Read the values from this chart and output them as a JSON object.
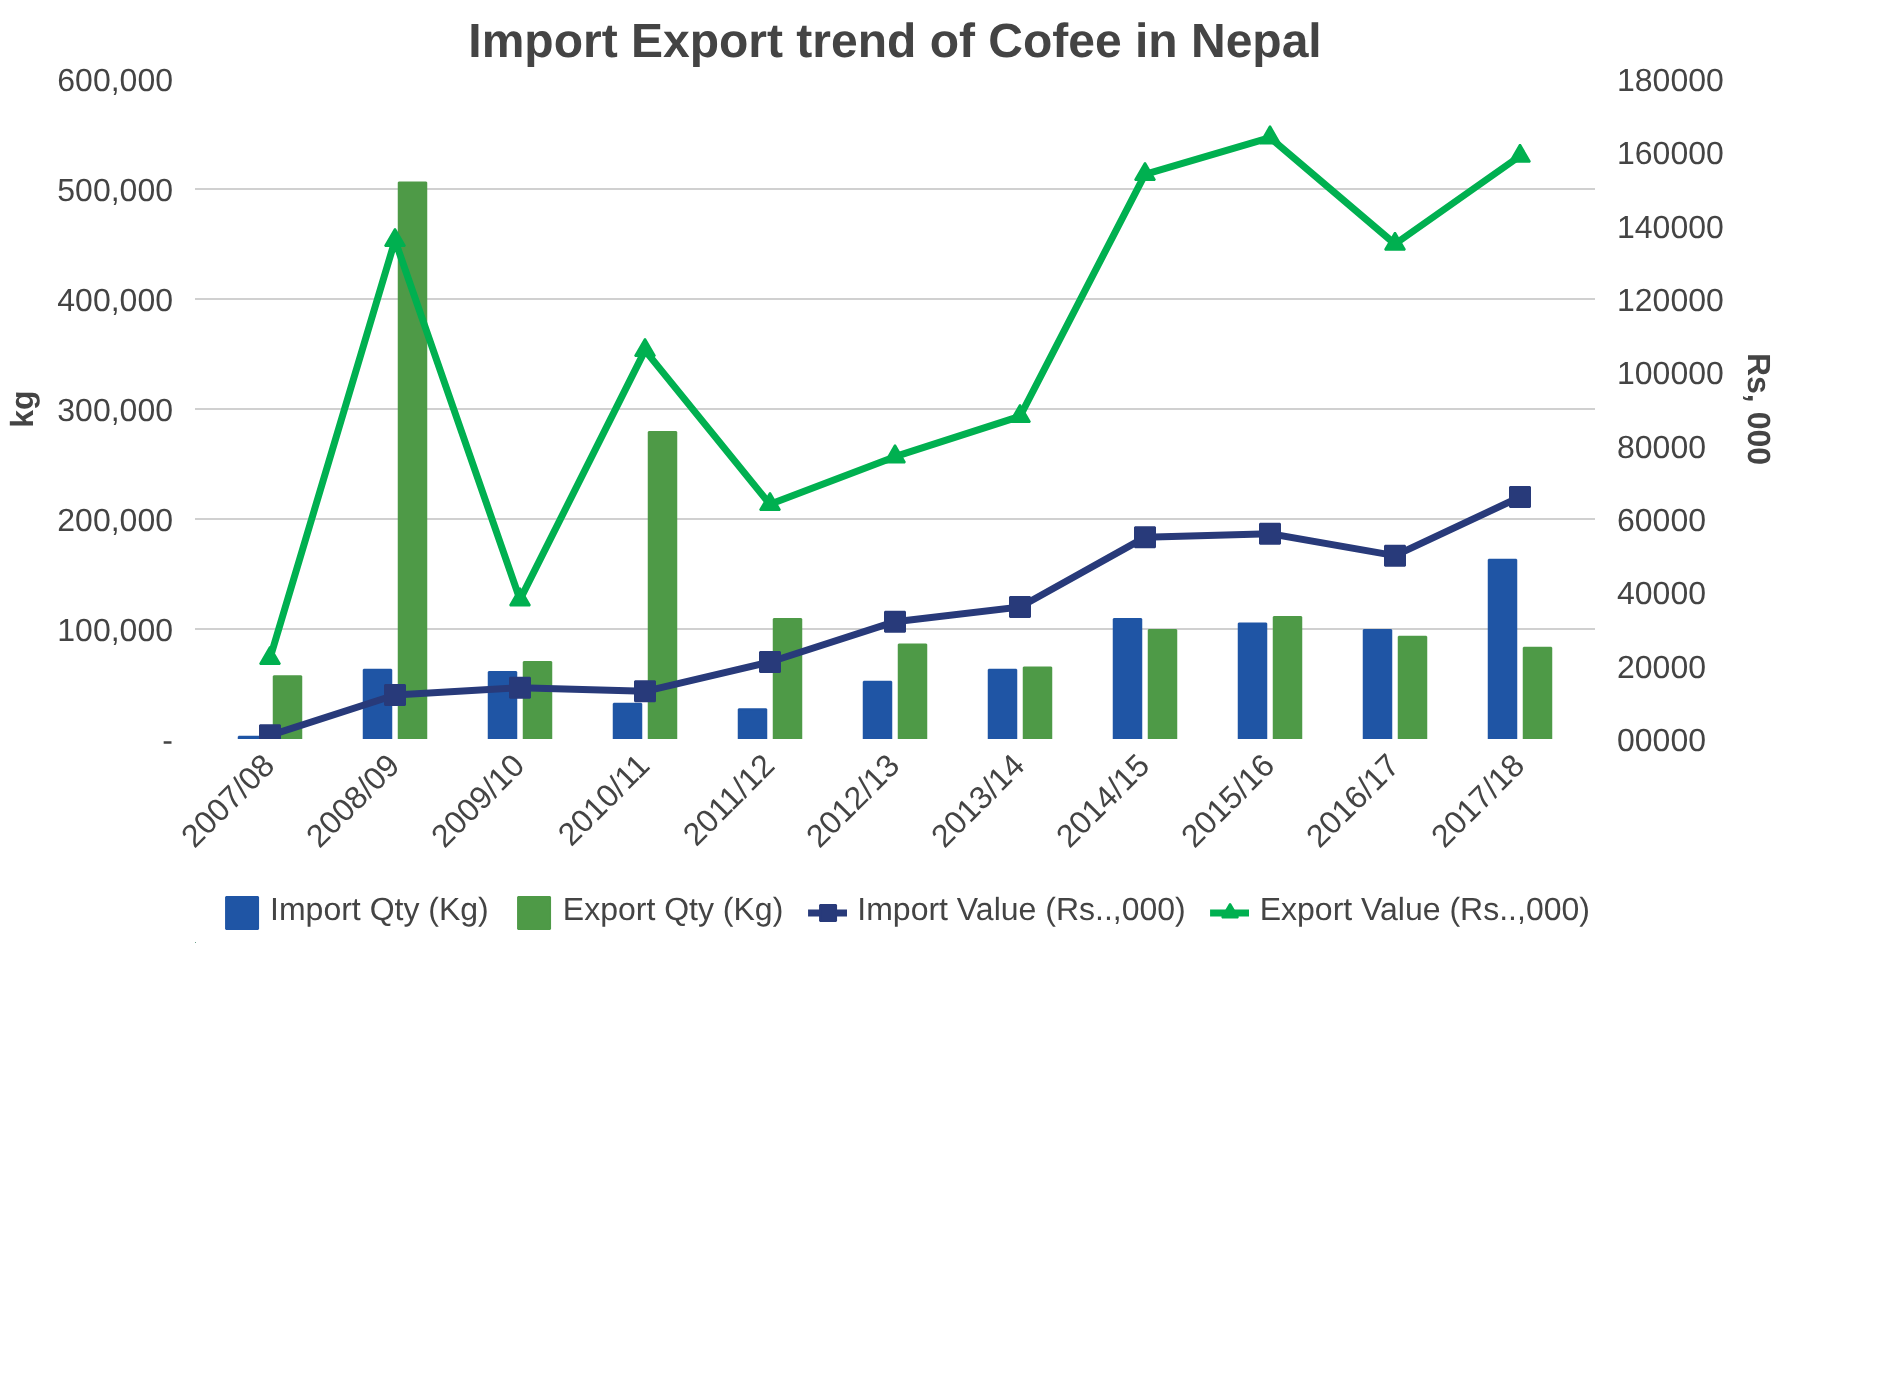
{
  "chart_data": {
    "type": "bar",
    "title": "Import Export trend of Cofee in Nepal",
    "ylabel": "kg",
    "y2label": "Rs, 000",
    "categories": [
      "2007/08",
      "2008/09",
      "2009/10",
      "2010/11",
      "2011/12",
      "2012/13",
      "2013/14",
      "2014/15",
      "2015/16",
      "2016/17",
      "2017/18"
    ],
    "series": [
      {
        "name": "Import Qty (Kg)",
        "color": "#1f55a5",
        "values": [
          2000,
          63000,
          61000,
          32000,
          27000,
          52000,
          63000,
          109000,
          105000,
          99000,
          163000
        ]
      },
      {
        "name": "Export Qty (Kg)",
        "color": "#4e9a47",
        "values": [
          57000,
          506000,
          70000,
          279000,
          109000,
          86000,
          65000,
          99000,
          111000,
          93000,
          83000
        ]
      },
      {
        "name": "Import Value (Rs..,000)",
        "type": "line",
        "axis": "y2",
        "marker": "square",
        "color": "#283a7a",
        "values": [
          1000,
          12000,
          14000,
          13000,
          21000,
          32000,
          36000,
          55000,
          56000,
          50000,
          66000
        ]
      },
      {
        "name": "Export Value (Rs..,000)",
        "type": "line",
        "axis": "y2",
        "marker": "triangle",
        "color": "#00b050",
        "values": [
          22000,
          136000,
          38000,
          106000,
          64000,
          77000,
          88000,
          154000,
          164000,
          135000,
          159000
        ]
      }
    ],
    "ylim": [
      0,
      600000
    ],
    "yticks": [
      {
        "value": 0,
        "label": "-"
      },
      {
        "value": 100000,
        "label": "100,000"
      },
      {
        "value": 200000,
        "label": "200,000"
      },
      {
        "value": 300000,
        "label": "300,000"
      },
      {
        "value": 400000,
        "label": "400,000"
      },
      {
        "value": 500000,
        "label": "500,000"
      },
      {
        "value": 600000,
        "label": "600,000"
      }
    ],
    "y2lim": [
      0,
      180000
    ],
    "y2ticks": [
      {
        "value": 0,
        "label": "00000"
      },
      20000,
      40000,
      60000,
      80000,
      100000,
      120000,
      140000,
      160000,
      180000
    ],
    "grid": "y",
    "legend": "bottom",
    "line_style": "solid"
  }
}
